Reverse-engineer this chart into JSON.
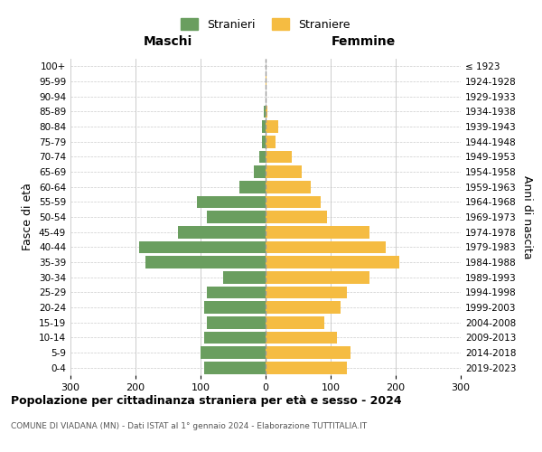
{
  "age_groups": [
    "0-4",
    "5-9",
    "10-14",
    "15-19",
    "20-24",
    "25-29",
    "30-34",
    "35-39",
    "40-44",
    "45-49",
    "50-54",
    "55-59",
    "60-64",
    "65-69",
    "70-74",
    "75-79",
    "80-84",
    "85-89",
    "90-94",
    "95-99",
    "100+"
  ],
  "birth_years": [
    "2019-2023",
    "2014-2018",
    "2009-2013",
    "2004-2008",
    "1999-2003",
    "1994-1998",
    "1989-1993",
    "1984-1988",
    "1979-1983",
    "1974-1978",
    "1969-1973",
    "1964-1968",
    "1959-1963",
    "1954-1958",
    "1949-1953",
    "1944-1948",
    "1939-1943",
    "1934-1938",
    "1929-1933",
    "1924-1928",
    "≤ 1923"
  ],
  "maschi": [
    95,
    100,
    95,
    90,
    95,
    90,
    65,
    185,
    195,
    135,
    90,
    105,
    40,
    18,
    10,
    5,
    5,
    3,
    0,
    0,
    0
  ],
  "femmine": [
    125,
    130,
    110,
    90,
    115,
    125,
    160,
    205,
    185,
    160,
    95,
    85,
    70,
    55,
    40,
    15,
    20,
    3,
    0,
    1,
    0
  ],
  "male_color": "#6a9e5f",
  "female_color": "#f5bc42",
  "bar_height": 0.82,
  "xlim": 300,
  "title": "Popolazione per cittadinanza straniera per età e sesso - 2024",
  "subtitle": "COMUNE DI VIADANA (MN) - Dati ISTAT al 1° gennaio 2024 - Elaborazione TUTTITALIA.IT",
  "left_label": "Maschi",
  "right_label": "Femmine",
  "ylabel_left": "Fasce di età",
  "ylabel_right": "Anni di nascita",
  "legend_male": "Stranieri",
  "legend_female": "Straniere",
  "grid_color": "#cccccc",
  "background_color": "#ffffff",
  "center_line_color": "#999999"
}
